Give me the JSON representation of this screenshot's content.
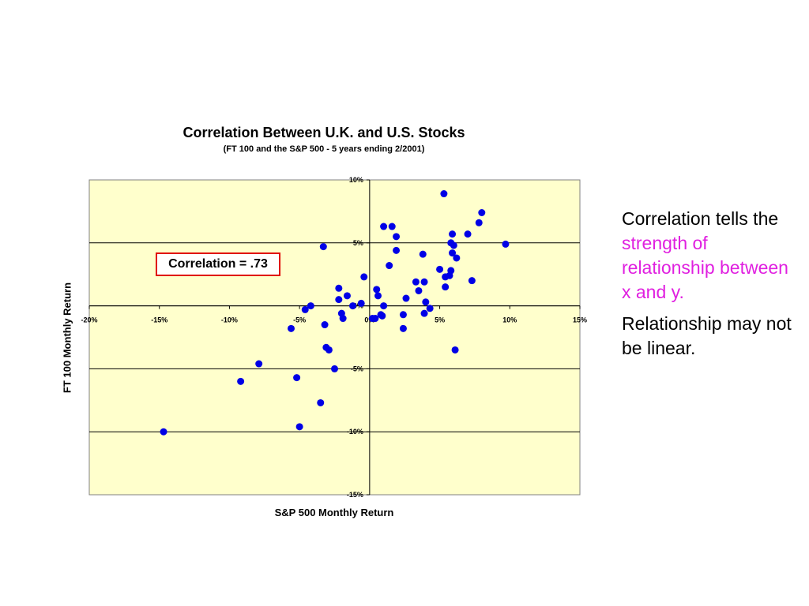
{
  "slide": {
    "side_text": {
      "p1_before": "Correlation tells the ",
      "p1_highlight": "strength of relationship between x and y.",
      "p2": "Relationship may not be linear."
    },
    "highlight_color": "#e020e0"
  },
  "chart_data": {
    "type": "scatter",
    "title": "Correlation Between U.K. and U.S. Stocks",
    "subtitle": "(FT 100 and the S&P 500 - 5 years ending 2/2001)",
    "xlabel": "S&P 500 Monthly Return",
    "ylabel": "FT 100 Monthly Return",
    "xlim": [
      -20,
      15
    ],
    "ylim": [
      -15,
      10
    ],
    "x_ticks": [
      -20,
      -15,
      -10,
      -5,
      0,
      5,
      10,
      15
    ],
    "y_ticks": [
      10,
      5,
      0,
      -5,
      -10,
      -15
    ],
    "x_tick_labels": [
      "-20%",
      "-15%",
      "-10%",
      "-5%",
      "0%",
      "5%",
      "10%",
      "15%"
    ],
    "y_tick_labels": [
      "10%",
      "5%",
      "0%",
      "-5%",
      "-10%",
      "-15%"
    ],
    "grid": "horizontal",
    "plot_background": "#ffffcc",
    "marker_color": "#0000e6",
    "annotation": "Correlation = .73",
    "annotation_border_color": "#e00000",
    "points": [
      [
        -14.7,
        -10.0
      ],
      [
        -9.2,
        -6.0
      ],
      [
        -7.9,
        -4.6
      ],
      [
        -5.6,
        -1.8
      ],
      [
        -5.2,
        -5.7
      ],
      [
        -5.0,
        -9.6
      ],
      [
        -4.6,
        -0.3
      ],
      [
        -4.2,
        0.0
      ],
      [
        -3.5,
        -7.7
      ],
      [
        -3.3,
        4.7
      ],
      [
        -3.2,
        -1.5
      ],
      [
        -3.1,
        -3.3
      ],
      [
        -2.9,
        -3.5
      ],
      [
        -2.5,
        -5.0
      ],
      [
        -2.2,
        1.4
      ],
      [
        -2.2,
        0.5
      ],
      [
        -2.0,
        -0.6
      ],
      [
        -1.9,
        -1.0
      ],
      [
        -1.6,
        0.8
      ],
      [
        -1.2,
        0.0
      ],
      [
        -0.6,
        0.2
      ],
      [
        -0.4,
        2.3
      ],
      [
        0.2,
        -1.0
      ],
      [
        0.4,
        -1.0
      ],
      [
        0.5,
        1.3
      ],
      [
        0.6,
        0.8
      ],
      [
        0.8,
        -0.7
      ],
      [
        0.9,
        -0.8
      ],
      [
        1.0,
        0.0
      ],
      [
        1.0,
        6.3
      ],
      [
        1.4,
        3.2
      ],
      [
        1.6,
        6.3
      ],
      [
        1.9,
        5.5
      ],
      [
        1.9,
        4.4
      ],
      [
        2.4,
        -1.8
      ],
      [
        2.4,
        -0.7
      ],
      [
        2.6,
        0.6
      ],
      [
        3.3,
        1.9
      ],
      [
        3.5,
        1.2
      ],
      [
        3.8,
        4.1
      ],
      [
        3.9,
        1.9
      ],
      [
        3.9,
        -0.6
      ],
      [
        4.0,
        0.3
      ],
      [
        4.3,
        -0.2
      ],
      [
        5.0,
        2.9
      ],
      [
        5.3,
        8.9
      ],
      [
        5.4,
        2.3
      ],
      [
        5.4,
        1.5
      ],
      [
        5.7,
        2.4
      ],
      [
        5.8,
        5.0
      ],
      [
        5.8,
        2.8
      ],
      [
        5.9,
        5.7
      ],
      [
        5.9,
        4.2
      ],
      [
        6.0,
        4.8
      ],
      [
        6.1,
        -3.5
      ],
      [
        6.2,
        3.8
      ],
      [
        7.0,
        5.7
      ],
      [
        7.3,
        2.0
      ],
      [
        7.8,
        6.6
      ],
      [
        8.0,
        7.4
      ],
      [
        9.7,
        4.9
      ]
    ]
  }
}
